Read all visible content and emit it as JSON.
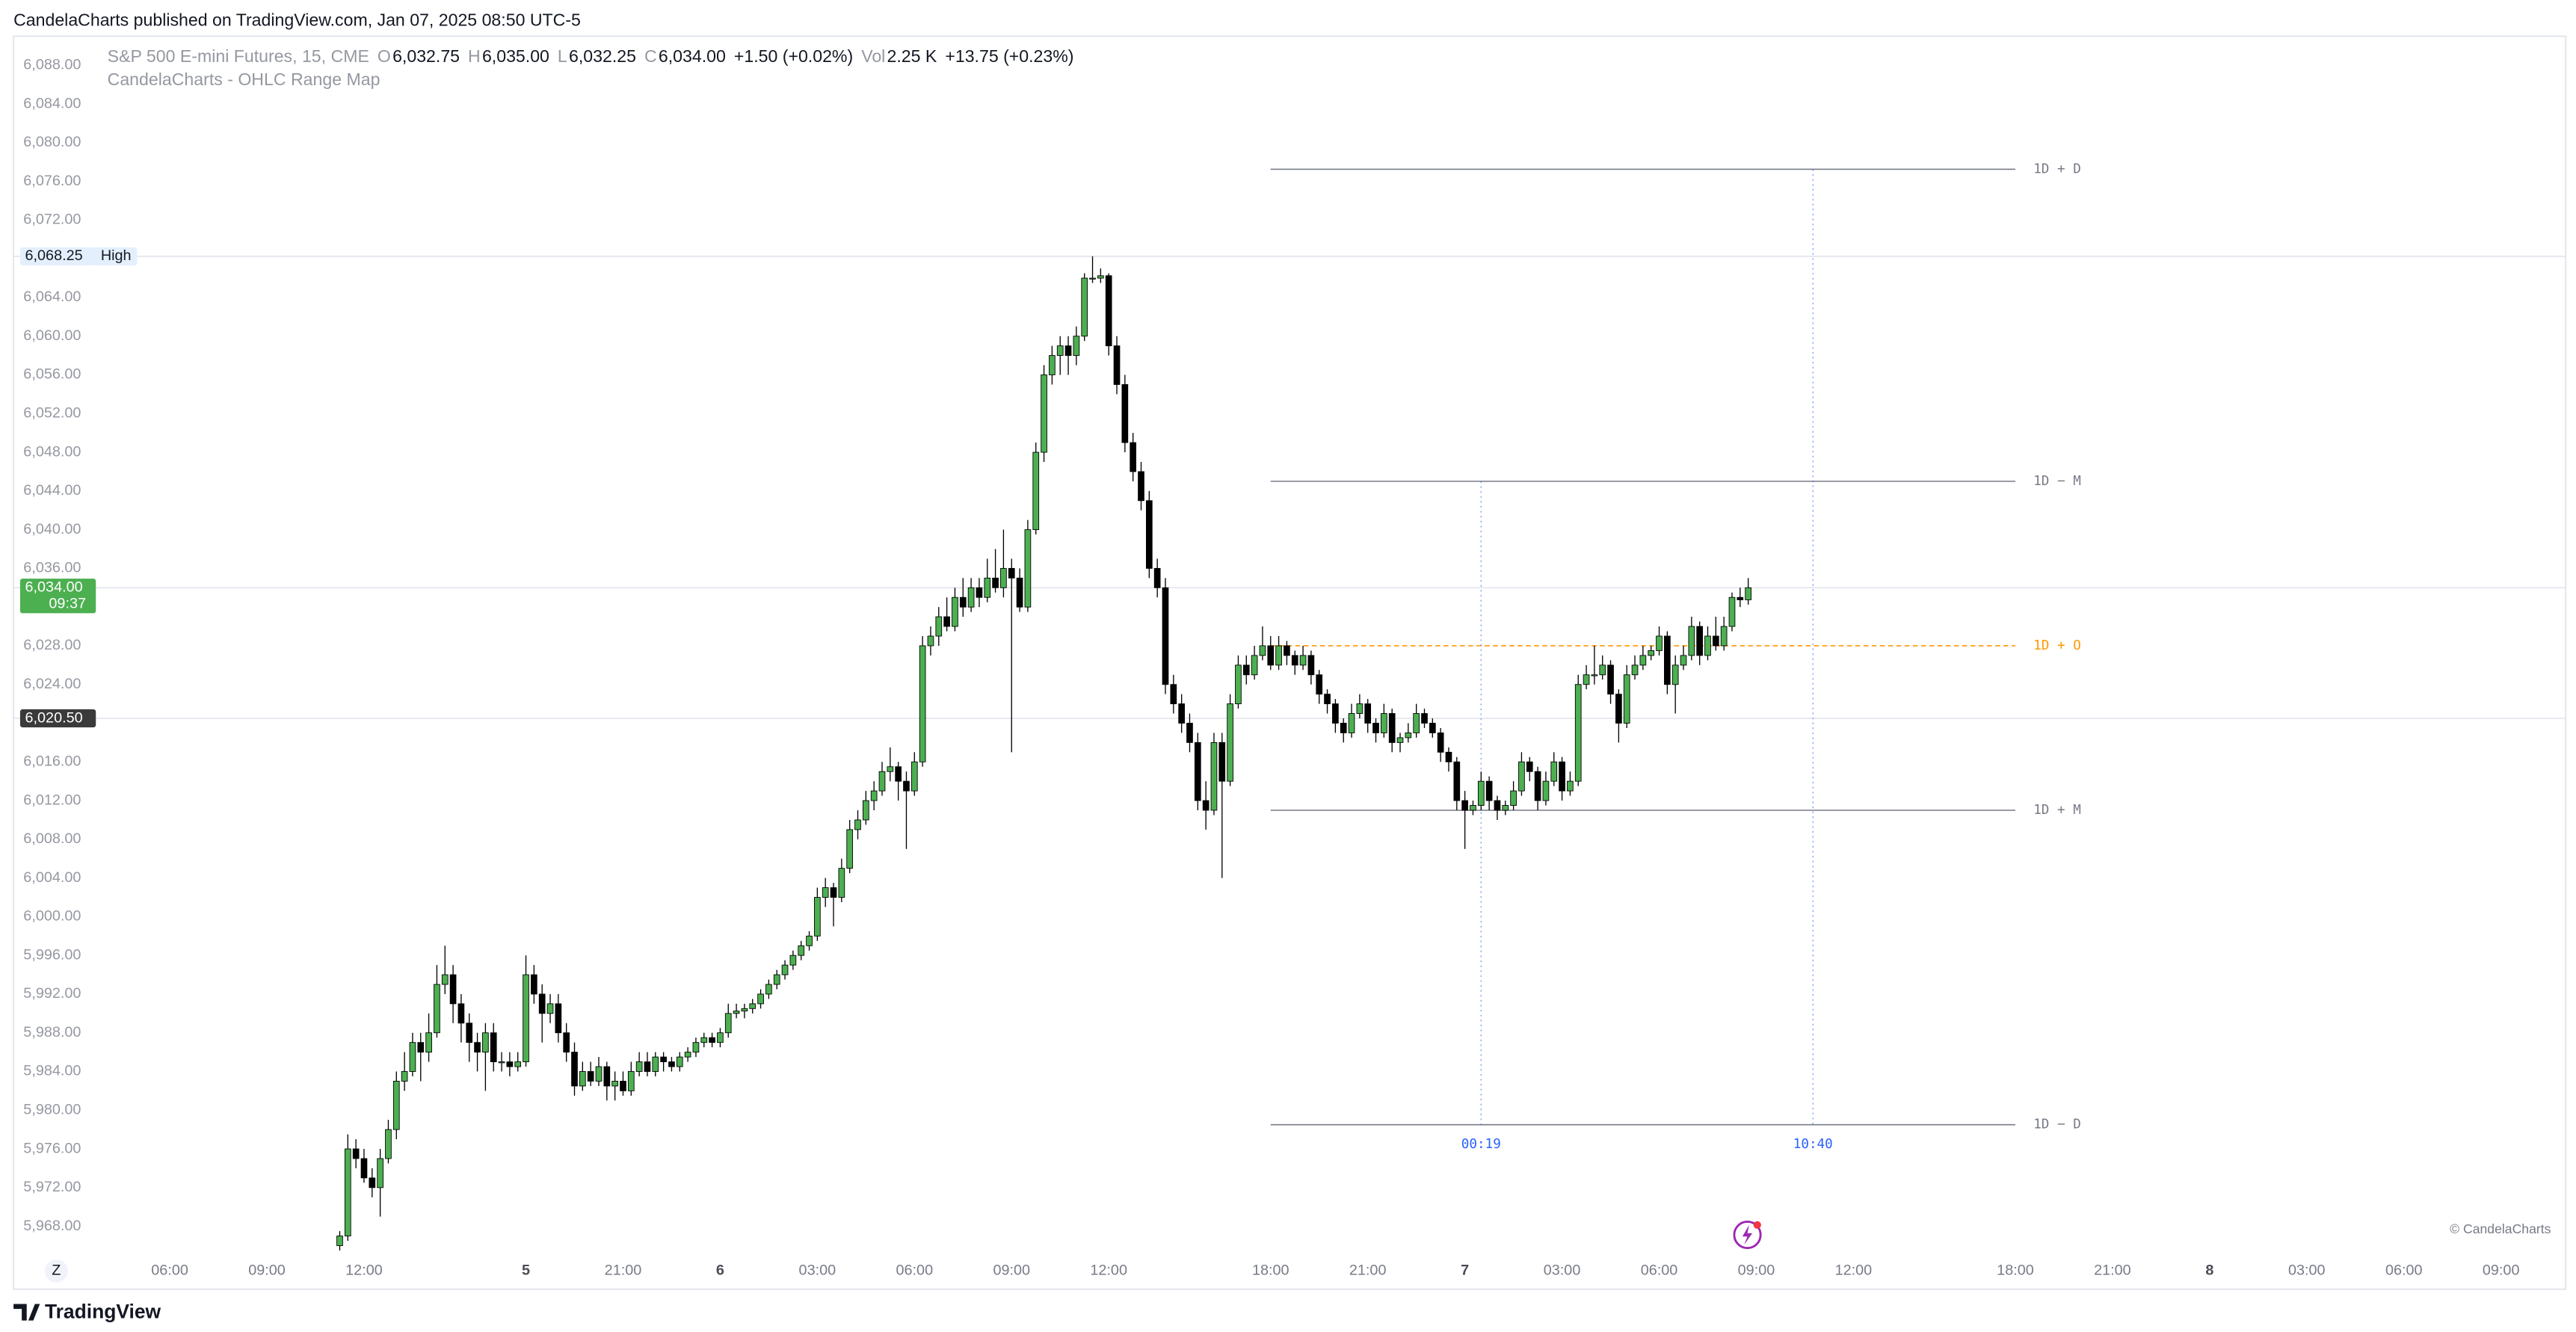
{
  "header": {
    "text": "CandelaCharts published on TradingView.com, Jan 07, 2025 08:50 UTC-5"
  },
  "footer": {
    "brand": "TradingView",
    "watermark": "© CandelaCharts",
    "z_button": "Z"
  },
  "chart_data": {
    "type": "candlestick",
    "legend": [
      {
        "text": "S&P 500 E-mini Futures, 15, CME",
        "muted": true
      },
      {
        "text": "O",
        "muted": true
      },
      {
        "text": "6,032.75"
      },
      {
        "text": "H",
        "muted": true
      },
      {
        "text": "6,035.00"
      },
      {
        "text": "L",
        "muted": true
      },
      {
        "text": "6,032.25"
      },
      {
        "text": "C",
        "muted": true
      },
      {
        "text": "6,034.00"
      },
      {
        "text": "+1.50 (+0.02%)"
      },
      {
        "text": "Vol",
        "muted": true
      },
      {
        "text": "2.25 K"
      },
      {
        "text": "+13.75 (+0.23%)"
      }
    ],
    "indicator": "CandelaCharts - OHLC Range Map",
    "up_color": "#4caf50",
    "down_color": "#000000",
    "ylim": [
      5961.5,
      6091
    ],
    "yticks": [
      {
        "value": 6088,
        "label": "6,088.00"
      },
      {
        "value": 6084,
        "label": "6,084.00"
      },
      {
        "value": 6080,
        "label": "6,080.00"
      },
      {
        "value": 6076,
        "label": "6,076.00"
      },
      {
        "value": 6072,
        "label": "6,072.00"
      },
      {
        "value": 6064,
        "label": "6,064.00"
      },
      {
        "value": 6060,
        "label": "6,060.00"
      },
      {
        "value": 6056,
        "label": "6,056.00"
      },
      {
        "value": 6052,
        "label": "6,052.00"
      },
      {
        "value": 6048,
        "label": "6,048.00"
      },
      {
        "value": 6044,
        "label": "6,044.00"
      },
      {
        "value": 6040,
        "label": "6,040.00"
      },
      {
        "value": 6036,
        "label": "6,036.00"
      },
      {
        "value": 6028,
        "label": "6,028.00"
      },
      {
        "value": 6024,
        "label": "6,024.00"
      },
      {
        "value": 6016,
        "label": "6,016.00"
      },
      {
        "value": 6012,
        "label": "6,012.00"
      },
      {
        "value": 6008,
        "label": "6,008.00"
      },
      {
        "value": 6004,
        "label": "6,004.00"
      },
      {
        "value": 6000,
        "label": "6,000.00"
      },
      {
        "value": 5996,
        "label": "5,996.00"
      },
      {
        "value": 5992,
        "label": "5,992.00"
      },
      {
        "value": 5988,
        "label": "5,988.00"
      },
      {
        "value": 5984,
        "label": "5,984.00"
      },
      {
        "value": 5980,
        "label": "5,980.00"
      },
      {
        "value": 5976,
        "label": "5,976.00"
      },
      {
        "value": 5972,
        "label": "5,972.00"
      },
      {
        "value": 5968,
        "label": "5,968.00"
      }
    ],
    "xlim": [
      -40.3,
      275
    ],
    "xticks": [
      {
        "value": -21,
        "label": "06:00"
      },
      {
        "value": -9,
        "label": "09:00"
      },
      {
        "value": 3,
        "label": "12:00"
      },
      {
        "value": 23,
        "label": "5"
      },
      {
        "value": 35,
        "label": "21:00"
      },
      {
        "value": 47,
        "label": "6"
      },
      {
        "value": 59,
        "label": "03:00"
      },
      {
        "value": 71,
        "label": "06:00"
      },
      {
        "value": 83,
        "label": "09:00"
      },
      {
        "value": 95,
        "label": "12:00"
      },
      {
        "value": 115,
        "label": "18:00"
      },
      {
        "value": 127,
        "label": "21:00"
      },
      {
        "value": 139,
        "label": "7"
      },
      {
        "value": 151,
        "label": "03:00"
      },
      {
        "value": 163,
        "label": "06:00"
      },
      {
        "value": 175,
        "label": "09:00"
      },
      {
        "value": 187,
        "label": "12:00"
      },
      {
        "value": 207,
        "label": "18:00"
      },
      {
        "value": 219,
        "label": "21:00"
      },
      {
        "value": 231,
        "label": "8"
      },
      {
        "value": 243,
        "label": "03:00"
      },
      {
        "value": 255,
        "label": "06:00"
      },
      {
        "value": 267,
        "label": "09:00"
      }
    ],
    "candles": [
      [
        5966,
        5967.5,
        5965.5,
        5967
      ],
      [
        5967,
        5977.5,
        5966.5,
        5976
      ],
      [
        5976,
        5977,
        5974,
        5975
      ],
      [
        5975,
        5976,
        5972.5,
        5973
      ],
      [
        5973,
        5974,
        5971,
        5972
      ],
      [
        5972,
        5976,
        5969,
        5975
      ],
      [
        5975,
        5979,
        5974.5,
        5978
      ],
      [
        5978,
        5984,
        5977,
        5983
      ],
      [
        5983,
        5986,
        5982,
        5984
      ],
      [
        5984,
        5988,
        5983.5,
        5987
      ],
      [
        5987,
        5988,
        5983,
        5986
      ],
      [
        5986,
        5990,
        5985,
        5988
      ],
      [
        5988,
        5995,
        5987.5,
        5993
      ],
      [
        5993,
        5997,
        5992,
        5994
      ],
      [
        5994,
        5995,
        5989,
        5991
      ],
      [
        5991,
        5992,
        5987,
        5989
      ],
      [
        5989,
        5990,
        5985,
        5987
      ],
      [
        5987,
        5988,
        5984,
        5986
      ],
      [
        5986,
        5989,
        5982,
        5988
      ],
      [
        5988,
        5989,
        5984,
        5985
      ],
      [
        5985,
        5986,
        5984,
        5985
      ],
      [
        5985,
        5986,
        5983.5,
        5984.5
      ],
      [
        5984.5,
        5986,
        5984,
        5985
      ],
      [
        5985,
        5996,
        5984.5,
        5994
      ],
      [
        5994,
        5995,
        5991,
        5992
      ],
      [
        5992,
        5993,
        5987,
        5990
      ],
      [
        5990,
        5992,
        5989,
        5991
      ],
      [
        5991,
        5992,
        5987,
        5988
      ],
      [
        5988,
        5989,
        5985,
        5986
      ],
      [
        5986,
        5987,
        5981.5,
        5982.5
      ],
      [
        5982.5,
        5985,
        5982,
        5984
      ],
      [
        5984,
        5985,
        5982.5,
        5983
      ],
      [
        5983,
        5985.5,
        5982.5,
        5984.5
      ],
      [
        5984.5,
        5985,
        5981,
        5982.5
      ],
      [
        5982.5,
        5984,
        5981,
        5983
      ],
      [
        5983,
        5984,
        5981.5,
        5982
      ],
      [
        5982,
        5985,
        5981.5,
        5984
      ],
      [
        5984,
        5986,
        5983.5,
        5985
      ],
      [
        5985,
        5986,
        5983.5,
        5984
      ],
      [
        5984,
        5986,
        5983.5,
        5985.5
      ],
      [
        5985.5,
        5986,
        5984,
        5985
      ],
      [
        5985,
        5985.5,
        5984,
        5984.5
      ],
      [
        5984.5,
        5986,
        5984,
        5985.5
      ],
      [
        5985.5,
        5986.5,
        5985,
        5986
      ],
      [
        5986,
        5987.5,
        5985.5,
        5987
      ],
      [
        5987,
        5988,
        5986.5,
        5987.5
      ],
      [
        5987.5,
        5988,
        5986.5,
        5987
      ],
      [
        5987,
        5988.5,
        5986.5,
        5988
      ],
      [
        5988,
        5991,
        5987.5,
        5990
      ],
      [
        5990,
        5991,
        5989.5,
        5990.25
      ],
      [
        5990.25,
        5991,
        5989.5,
        5990.5
      ],
      [
        5990.5,
        5991.5,
        5990,
        5991
      ],
      [
        5991,
        5992.5,
        5990.5,
        5992
      ],
      [
        5992,
        5993.5,
        5991.5,
        5993
      ],
      [
        5993,
        5994.5,
        5992.5,
        5994
      ],
      [
        5994,
        5995.5,
        5993.5,
        5995
      ],
      [
        5995,
        5996.5,
        5994.5,
        5996
      ],
      [
        5996,
        5997.5,
        5995.5,
        5997
      ],
      [
        5997,
        5998.5,
        5996.5,
        5998
      ],
      [
        5998,
        6003,
        5997.5,
        6002
      ],
      [
        6002,
        6004,
        6001,
        6003
      ],
      [
        6003,
        6003.5,
        5999,
        6002
      ],
      [
        6002,
        6006,
        6001.5,
        6005
      ],
      [
        6005,
        6010,
        6004.5,
        6009
      ],
      [
        6009,
        6011,
        6008,
        6010
      ],
      [
        6010,
        6013,
        6009.5,
        6012
      ],
      [
        6012,
        6014,
        6011,
        6013
      ],
      [
        6013,
        6016,
        6012.5,
        6015
      ],
      [
        6015,
        6017.5,
        6014,
        6015.5
      ],
      [
        6015.5,
        6016,
        6012,
        6014
      ],
      [
        6014,
        6015,
        6007,
        6013
      ],
      [
        6013,
        6017,
        6012.5,
        6016
      ],
      [
        6016,
        6029,
        6015.5,
        6028
      ],
      [
        6028,
        6030,
        6027,
        6029
      ],
      [
        6029,
        6032,
        6028,
        6031
      ],
      [
        6031,
        6033,
        6029.5,
        6030
      ],
      [
        6030,
        6034,
        6029.5,
        6033
      ],
      [
        6033,
        6035,
        6031,
        6032
      ],
      [
        6032,
        6035,
        6031.5,
        6034
      ],
      [
        6034,
        6035,
        6032,
        6033
      ],
      [
        6033,
        6037,
        6032.5,
        6035
      ],
      [
        6035,
        6038,
        6033.5,
        6034
      ],
      [
        6034,
        6040,
        6033,
        6036
      ],
      [
        6036,
        6037,
        6017,
        6035
      ],
      [
        6035,
        6036,
        6031.5,
        6032
      ],
      [
        6032,
        6041,
        6031.5,
        6040
      ],
      [
        6040,
        6049,
        6039.5,
        6048
      ],
      [
        6048,
        6057,
        6047,
        6056
      ],
      [
        6056,
        6059,
        6055,
        6058
      ],
      [
        6058,
        6060,
        6056,
        6059
      ],
      [
        6059,
        6060,
        6056,
        6058
      ],
      [
        6058,
        6061,
        6057,
        6060
      ],
      [
        6060,
        6066.5,
        6059.5,
        6066
      ],
      [
        6066,
        6068.25,
        6065.5,
        6066
      ],
      [
        6066,
        6067,
        6065.5,
        6066.25
      ],
      [
        6066.25,
        6066.5,
        6058,
        6059
      ],
      [
        6059,
        6060,
        6054,
        6055
      ],
      [
        6055,
        6056,
        6048,
        6049
      ],
      [
        6049,
        6050,
        6045,
        6046
      ],
      [
        6046,
        6047,
        6042,
        6043
      ],
      [
        6043,
        6044,
        6035,
        6036
      ],
      [
        6036,
        6037,
        6033,
        6034
      ],
      [
        6034,
        6035,
        6023,
        6024
      ],
      [
        6024,
        6025,
        6021,
        6022
      ],
      [
        6022,
        6023,
        6019,
        6020
      ],
      [
        6020,
        6021,
        6017,
        6018
      ],
      [
        6018,
        6019,
        6011,
        6012
      ],
      [
        6012,
        6014,
        6009,
        6011
      ],
      [
        6011,
        6019,
        6010.5,
        6018
      ],
      [
        6018,
        6019,
        6004,
        6014
      ],
      [
        6014,
        6023,
        6013.5,
        6022
      ],
      [
        6022,
        6027,
        6021.5,
        6026
      ],
      [
        6026,
        6027,
        6024,
        6025
      ],
      [
        6025,
        6028,
        6024.5,
        6027
      ],
      [
        6027,
        6030,
        6026.5,
        6028
      ],
      [
        6028,
        6029,
        6025.5,
        6026
      ],
      [
        6026,
        6029,
        6025.5,
        6028
      ],
      [
        6028,
        6028.5,
        6026,
        6027
      ],
      [
        6027,
        6027.5,
        6025,
        6026
      ],
      [
        6026,
        6028,
        6025.5,
        6027
      ],
      [
        6027,
        6027.5,
        6024,
        6025
      ],
      [
        6025,
        6025.5,
        6022,
        6023
      ],
      [
        6023,
        6023.5,
        6021,
        6022
      ],
      [
        6022,
        6022.5,
        6019,
        6020
      ],
      [
        6020,
        6020.5,
        6018,
        6019
      ],
      [
        6019,
        6022,
        6018.5,
        6021
      ],
      [
        6021,
        6023,
        6020.5,
        6022
      ],
      [
        6022,
        6022.5,
        6019,
        6020
      ],
      [
        6020,
        6020.5,
        6018,
        6019
      ],
      [
        6019,
        6022,
        6018.5,
        6021
      ],
      [
        6021,
        6021.5,
        6017,
        6018
      ],
      [
        6018,
        6019,
        6017,
        6018.5
      ],
      [
        6018.5,
        6020,
        6018,
        6019
      ],
      [
        6019,
        6022,
        6018.5,
        6021
      ],
      [
        6021,
        6021.5,
        6019.5,
        6020
      ],
      [
        6020,
        6020.5,
        6018.5,
        6019
      ],
      [
        6019,
        6019.5,
        6016,
        6017
      ],
      [
        6017,
        6017.5,
        6015,
        6016
      ],
      [
        6016,
        6016.5,
        6011,
        6012
      ],
      [
        6012,
        6013,
        6007,
        6011
      ],
      [
        6011,
        6012,
        6010.5,
        6011.5
      ],
      [
        6011.5,
        6015,
        6011,
        6014
      ],
      [
        6014,
        6014.5,
        6011,
        6012
      ],
      [
        6012,
        6012.5,
        6010,
        6011
      ],
      [
        6011,
        6012,
        6010.5,
        6011.5
      ],
      [
        6011.5,
        6014,
        6011,
        6013
      ],
      [
        6013,
        6017,
        6012.5,
        6016
      ],
      [
        6016,
        6016.5,
        6014,
        6015
      ],
      [
        6015,
        6015.5,
        6011,
        6012
      ],
      [
        6012,
        6015,
        6011.5,
        6014
      ],
      [
        6014,
        6017,
        6013.5,
        6016
      ],
      [
        6016,
        6016.5,
        6012,
        6013
      ],
      [
        6013,
        6015,
        6012.5,
        6014
      ],
      [
        6014,
        6025,
        6013.5,
        6024
      ],
      [
        6024,
        6026,
        6023.5,
        6025
      ],
      [
        6025,
        6028,
        6024,
        6025
      ],
      [
        6025,
        6027,
        6024.5,
        6026
      ],
      [
        6026,
        6026.5,
        6022,
        6023
      ],
      [
        6023,
        6023.5,
        6018,
        6020
      ],
      [
        6020,
        6026,
        6019.5,
        6025
      ],
      [
        6025,
        6027,
        6024.5,
        6026
      ],
      [
        6026,
        6028,
        6025.5,
        6027
      ],
      [
        6027,
        6028,
        6026.5,
        6027.5
      ],
      [
        6027.5,
        6030,
        6027,
        6029
      ],
      [
        6029,
        6029.5,
        6023,
        6024
      ],
      [
        6024,
        6027,
        6021,
        6026
      ],
      [
        6026,
        6028,
        6025.5,
        6027
      ],
      [
        6027,
        6031,
        6026.5,
        6030
      ],
      [
        6030,
        6030.5,
        6026,
        6027
      ],
      [
        6027,
        6030,
        6026.5,
        6029
      ],
      [
        6029,
        6031,
        6027.5,
        6028
      ],
      [
        6028,
        6031,
        6027.5,
        6030
      ],
      [
        6030,
        6033.5,
        6029.5,
        6033
      ],
      [
        6033,
        6034,
        6032,
        6032.75
      ],
      [
        6032.75,
        6035,
        6032.25,
        6034
      ]
    ],
    "price_tags": [
      {
        "value": 6068.25,
        "label": "6,068.25",
        "note": "High",
        "color": "#e3effd",
        "text_color": "#131722"
      },
      {
        "value": 6034,
        "label": "6,034.00",
        "note": "09:37",
        "color": "#4caf50",
        "text_color": "#ffffff"
      },
      {
        "value": 6020.5,
        "label": "6,020.50",
        "color": "#3a3a3a",
        "text_color": "#ffffff"
      }
    ],
    "level_range": [
      115,
      207
    ],
    "levels": [
      {
        "label": "1D + D",
        "value": 6077.25,
        "color": "#787b86",
        "dashed": false
      },
      {
        "label": "1D − M",
        "value": 6045,
        "color": "#787b86",
        "dashed": false
      },
      {
        "label": "1D + O",
        "value": 6028,
        "color": "#ff9800",
        "dashed": true
      },
      {
        "label": "1D + M",
        "value": 6011,
        "color": "#787b86",
        "dashed": false
      },
      {
        "label": "1D − D",
        "value": 5978.5,
        "color": "#787b86",
        "dashed": false
      }
    ],
    "time_markers": [
      {
        "label": "00:19",
        "x": 141,
        "top": 6045,
        "bottom": 5978.5
      },
      {
        "label": "10:40",
        "x": 182,
        "top": 6077.25,
        "bottom": 5978.5
      }
    ],
    "marker_color": "#2962ff"
  }
}
